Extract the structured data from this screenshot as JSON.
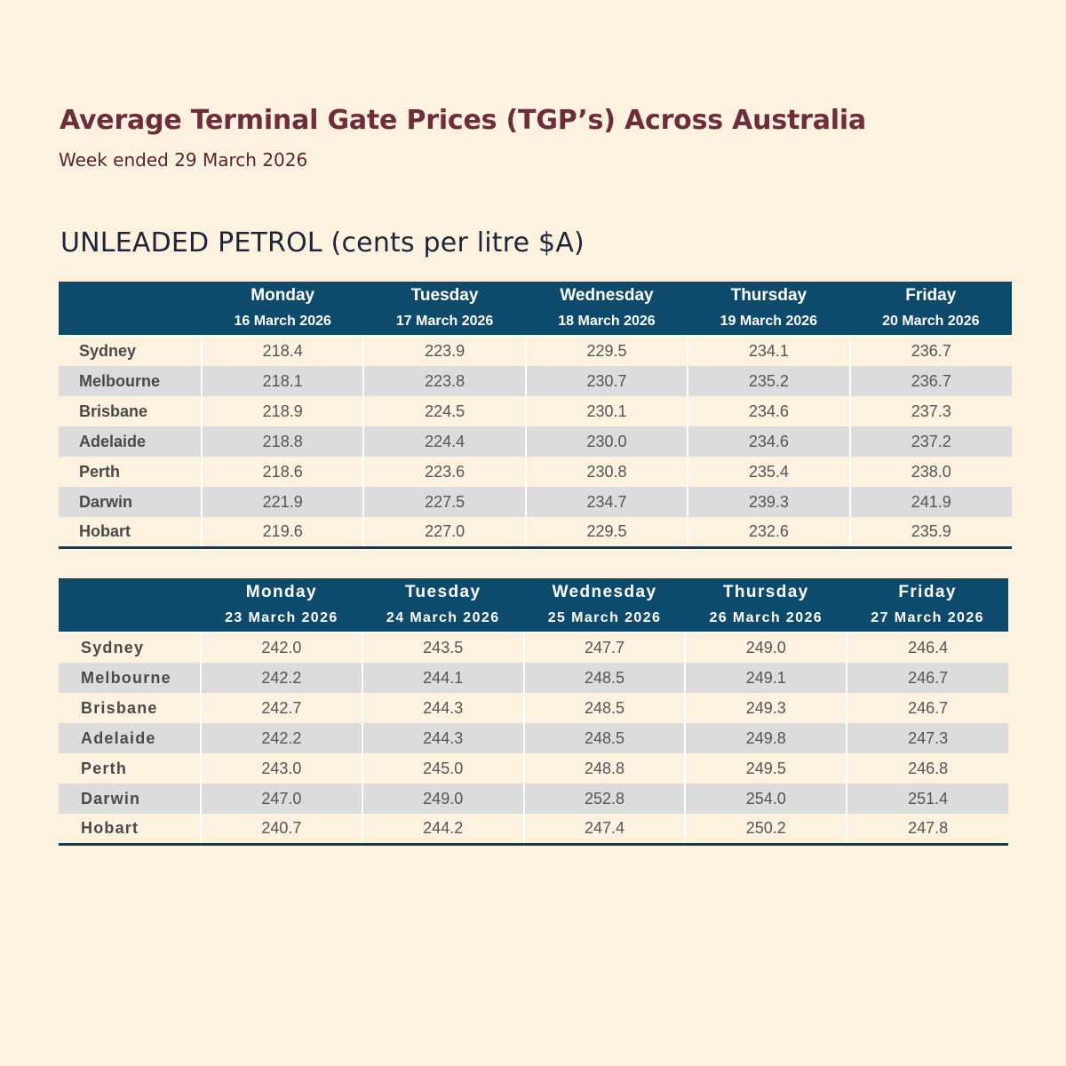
{
  "header": {
    "title": "Average Terminal Gate Prices (TGP’s)  Across Australia",
    "subtitle": "Week ended 29 March 2026"
  },
  "section": {
    "heading": "UNLEADED PETROL (cents per litre $A)"
  },
  "tables": [
    {
      "columns": [
        {
          "day": "Monday",
          "date": "16 March 2026"
        },
        {
          "day": "Tuesday",
          "date": "17 March 2026"
        },
        {
          "day": "Wednesday",
          "date": "18 March 2026"
        },
        {
          "day": "Thursday",
          "date": "19 March 2026"
        },
        {
          "day": "Friday",
          "date": "20 March 2026"
        }
      ],
      "rows": [
        {
          "city": "Sydney",
          "values": [
            "218.4",
            "223.9",
            "229.5",
            "234.1",
            "236.7"
          ]
        },
        {
          "city": "Melbourne",
          "values": [
            "218.1",
            "223.8",
            "230.7",
            "235.2",
            "236.7"
          ]
        },
        {
          "city": "Brisbane",
          "values": [
            "218.9",
            "224.5",
            "230.1",
            "234.6",
            "237.3"
          ]
        },
        {
          "city": "Adelaide",
          "values": [
            "218.8",
            "224.4",
            "230.0",
            "234.6",
            "237.2"
          ]
        },
        {
          "city": "Perth",
          "values": [
            "218.6",
            "223.6",
            "230.8",
            "235.4",
            "238.0"
          ]
        },
        {
          "city": "Darwin",
          "values": [
            "221.9",
            "227.5",
            "234.7",
            "239.3",
            "241.9"
          ]
        },
        {
          "city": "Hobart",
          "values": [
            "219.6",
            "227.0",
            "229.5",
            "232.6",
            "235.9"
          ]
        }
      ]
    },
    {
      "columns": [
        {
          "day": "Monday",
          "date": "23 March 2026"
        },
        {
          "day": "Tuesday",
          "date": "24 March 2026"
        },
        {
          "day": "Wednesday",
          "date": "25 March 2026"
        },
        {
          "day": "Thursday",
          "date": "26 March 2026"
        },
        {
          "day": "Friday",
          "date": "27 March 2026"
        }
      ],
      "rows": [
        {
          "city": "Sydney",
          "values": [
            "242.0",
            "243.5",
            "247.7",
            "249.0",
            "246.4"
          ]
        },
        {
          "city": "Melbourne",
          "values": [
            "242.2",
            "244.1",
            "248.5",
            "249.1",
            "246.7"
          ]
        },
        {
          "city": "Brisbane",
          "values": [
            "242.7",
            "244.3",
            "248.5",
            "249.3",
            "246.7"
          ]
        },
        {
          "city": "Adelaide",
          "values": [
            "242.2",
            "244.3",
            "248.5",
            "249.8",
            "247.3"
          ]
        },
        {
          "city": "Perth",
          "values": [
            "243.0",
            "245.0",
            "248.8",
            "249.5",
            "246.8"
          ]
        },
        {
          "city": "Darwin",
          "values": [
            "247.0",
            "249.0",
            "252.8",
            "254.0",
            "251.4"
          ]
        },
        {
          "city": "Hobart",
          "values": [
            "240.7",
            "244.2",
            "247.4",
            "250.2",
            "247.8"
          ]
        }
      ]
    }
  ],
  "colors": {
    "background": "#fdf1df",
    "title": "#6e2d3a",
    "header_fill": "#0e4a6b",
    "row_stripe": "#dcdcdc"
  }
}
